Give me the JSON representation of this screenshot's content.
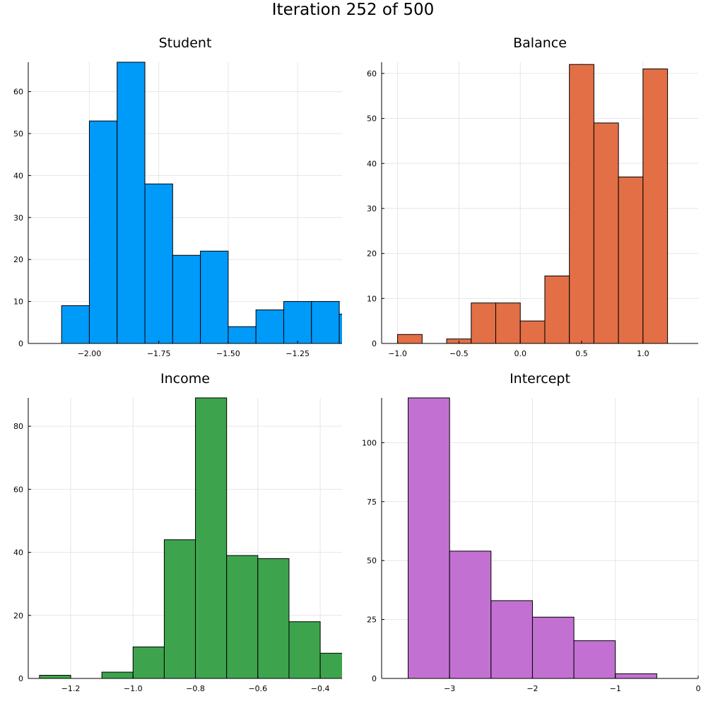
{
  "suptitle": "Iteration 252 of 500",
  "chart_data": [
    {
      "type": "bar",
      "title": "Student",
      "color": "#009af9",
      "xlim": [
        -2.22,
        -1.09
      ],
      "ylim": [
        0,
        67
      ],
      "xticks": [
        -2.0,
        -1.75,
        -1.5,
        -1.25
      ],
      "xtick_labels": [
        "−2.00",
        "−1.75",
        "−1.50",
        "−1.25"
      ],
      "yticks": [
        0,
        10,
        20,
        30,
        40,
        50,
        60
      ],
      "ytick_labels": [
        "0",
        "10",
        "20",
        "30",
        "40",
        "50",
        "60"
      ],
      "bins": [
        {
          "x0": -2.1,
          "x1": -2.0,
          "count": 9
        },
        {
          "x0": -2.0,
          "x1": -1.9,
          "count": 53
        },
        {
          "x0": -1.9,
          "x1": -1.8,
          "count": 67
        },
        {
          "x0": -1.8,
          "x1": -1.7,
          "count": 38
        },
        {
          "x0": -1.7,
          "x1": -1.6,
          "count": 21
        },
        {
          "x0": -1.6,
          "x1": -1.5,
          "count": 22
        },
        {
          "x0": -1.5,
          "x1": -1.4,
          "count": 4
        },
        {
          "x0": -1.4,
          "x1": -1.3,
          "count": 8
        },
        {
          "x0": -1.3,
          "x1": -1.2,
          "count": 10
        },
        {
          "x0": -1.2,
          "x1": -1.1,
          "count": 10
        },
        {
          "x0": -1.1,
          "x1": -1.0,
          "count": 7
        }
      ]
    },
    {
      "type": "bar",
      "title": "Balance",
      "color": "#e26f46",
      "xlim": [
        -1.13,
        1.45
      ],
      "ylim": [
        0,
        62.5
      ],
      "xticks": [
        -1.0,
        -0.5,
        0.0,
        0.5,
        1.0
      ],
      "xtick_labels": [
        "−1.0",
        "−0.5",
        "0.0",
        "0.5",
        "1.0"
      ],
      "yticks": [
        0,
        10,
        20,
        30,
        40,
        50,
        60
      ],
      "ytick_labels": [
        "0",
        "10",
        "20",
        "30",
        "40",
        "50",
        "60"
      ],
      "bins": [
        {
          "x0": -1.0,
          "x1": -0.8,
          "count": 2
        },
        {
          "x0": -0.8,
          "x1": -0.6,
          "count": 0
        },
        {
          "x0": -0.6,
          "x1": -0.4,
          "count": 1
        },
        {
          "x0": -0.4,
          "x1": -0.2,
          "count": 9
        },
        {
          "x0": -0.2,
          "x1": 0.0,
          "count": 9
        },
        {
          "x0": 0.0,
          "x1": 0.2,
          "count": 5
        },
        {
          "x0": 0.2,
          "x1": 0.4,
          "count": 15
        },
        {
          "x0": 0.4,
          "x1": 0.6,
          "count": 62
        },
        {
          "x0": 0.6,
          "x1": 0.8,
          "count": 49
        },
        {
          "x0": 0.8,
          "x1": 1.0,
          "count": 37
        },
        {
          "x0": 1.0,
          "x1": 1.2,
          "count": 61
        }
      ]
    },
    {
      "type": "bar",
      "title": "Income",
      "color": "#3da44d",
      "xlim": [
        -1.336,
        -0.33
      ],
      "ylim": [
        0,
        89
      ],
      "xticks": [
        -1.2,
        -1.0,
        -0.8,
        -0.6,
        -0.4
      ],
      "xtick_labels": [
        "−1.2",
        "−1.0",
        "−0.8",
        "−0.6",
        "−0.4"
      ],
      "yticks": [
        0,
        20,
        40,
        60,
        80
      ],
      "ytick_labels": [
        "0",
        "20",
        "40",
        "60",
        "80"
      ],
      "bins": [
        {
          "x0": -1.3,
          "x1": -1.2,
          "count": 1
        },
        {
          "x0": -1.2,
          "x1": -1.1,
          "count": 0
        },
        {
          "x0": -1.1,
          "x1": -1.0,
          "count": 2
        },
        {
          "x0": -1.0,
          "x1": -0.9,
          "count": 10
        },
        {
          "x0": -0.9,
          "x1": -0.8,
          "count": 44
        },
        {
          "x0": -0.8,
          "x1": -0.7,
          "count": 89
        },
        {
          "x0": -0.7,
          "x1": -0.6,
          "count": 39
        },
        {
          "x0": -0.6,
          "x1": -0.5,
          "count": 38
        },
        {
          "x0": -0.5,
          "x1": -0.4,
          "count": 18
        },
        {
          "x0": -0.4,
          "x1": -0.3,
          "count": 8
        }
      ]
    },
    {
      "type": "bar",
      "title": "Intercept",
      "color": "#c271d2",
      "xlim": [
        -3.82,
        0
      ],
      "ylim": [
        0,
        119
      ],
      "xticks": [
        -3,
        -2,
        -1,
        0
      ],
      "xtick_labels": [
        "−3",
        "−2",
        "−1",
        "0"
      ],
      "yticks": [
        0,
        25,
        50,
        75,
        100
      ],
      "ytick_labels": [
        "0",
        "25",
        "50",
        "75",
        "100"
      ],
      "bins": [
        {
          "x0": -3.5,
          "x1": -3.0,
          "count": 119
        },
        {
          "x0": -3.0,
          "x1": -2.5,
          "count": 54
        },
        {
          "x0": -2.5,
          "x1": -2.0,
          "count": 33
        },
        {
          "x0": -2.0,
          "x1": -1.5,
          "count": 26
        },
        {
          "x0": -1.5,
          "x1": -1.0,
          "count": 16
        },
        {
          "x0": -1.0,
          "x1": -0.5,
          "count": 2
        }
      ]
    }
  ]
}
